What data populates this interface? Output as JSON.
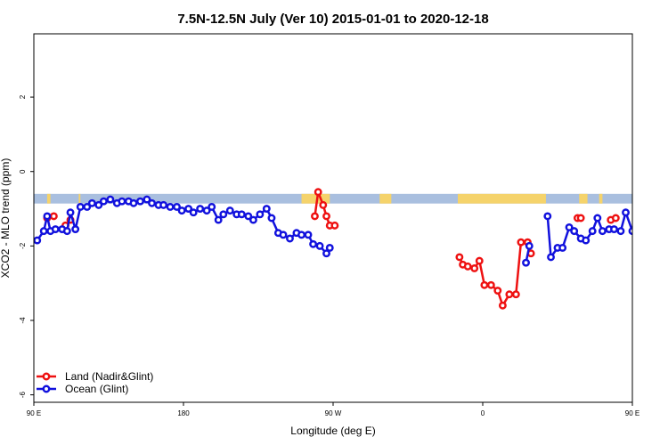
{
  "chart_data": {
    "type": "line",
    "title": "7.5N-12.5N July (Ver 10)   2015-01-01 to 2020-12-18",
    "xlabel": "Longitude (deg E)",
    "ylabel": "XCO2 - MLO trend (ppm)",
    "xlim": [
      90,
      450
    ],
    "ylim": [
      -6.2,
      3.7
    ],
    "x_ticks": [
      {
        "value": 90,
        "label": "90 E"
      },
      {
        "value": 180,
        "label": "180"
      },
      {
        "value": 270,
        "label": "90 W"
      },
      {
        "value": 360,
        "label": "0"
      },
      {
        "value": 450,
        "label": "90 E"
      },
      {
        "value": 540,
        "label": "180"
      }
    ],
    "y_ticks": [
      {
        "value": -6,
        "label": "-6"
      },
      {
        "value": -4,
        "label": "-4"
      },
      {
        "value": -2,
        "label": "-2"
      },
      {
        "value": 0,
        "label": "0"
      },
      {
        "value": 2,
        "label": "2"
      }
    ],
    "grid": false,
    "legend_position": "bottom-left",
    "map_strip": {
      "y_top": -0.6,
      "y_bottom": -0.86,
      "ocean_color": "#a9bfdf",
      "land_color": "#f5d36b",
      "land_segments": [
        [
          98,
          100
        ],
        [
          117,
          118
        ],
        [
          251,
          268
        ],
        [
          298,
          305
        ],
        [
          345,
          398
        ],
        [
          418,
          423
        ],
        [
          430,
          432
        ]
      ]
    },
    "series": [
      {
        "name": "Land (Nadir&Glint)",
        "color": "#ee1111",
        "segments": [
          [
            [
              98,
              -1.25
            ],
            [
              102,
              -1.2
            ]
          ],
          [
            [
              109,
              -1.45
            ],
            [
              112,
              -1.3
            ]
          ],
          [
            [
              259,
              -1.2
            ],
            [
              261,
              -0.55
            ],
            [
              264,
              -0.9
            ],
            [
              266,
              -1.2
            ],
            [
              268,
              -1.45
            ],
            [
              271,
              -1.45
            ]
          ],
          [
            [
              346,
              -2.3
            ],
            [
              348,
              -2.5
            ],
            [
              351,
              -2.55
            ],
            [
              355,
              -2.6
            ],
            [
              358,
              -2.4
            ],
            [
              361,
              -3.05
            ],
            [
              365,
              -3.05
            ],
            [
              369,
              -3.2
            ],
            [
              372,
              -3.6
            ],
            [
              376,
              -3.3
            ],
            [
              380,
              -3.3
            ],
            [
              383,
              -1.9
            ],
            [
              387,
              -1.9
            ],
            [
              389,
              -2.2
            ]
          ],
          [
            [
              417,
              -1.25
            ],
            [
              419,
              -1.25
            ]
          ],
          [
            [
              437,
              -1.3
            ],
            [
              440,
              -1.25
            ]
          ]
        ]
      },
      {
        "name": "Ocean (Glint)",
        "color": "#1111dd",
        "segments": [
          [
            [
              92,
              -1.85
            ],
            [
              96,
              -1.6
            ],
            [
              98,
              -1.2
            ],
            [
              100,
              -1.6
            ],
            [
              103,
              -1.55
            ],
            [
              107,
              -1.55
            ],
            [
              110,
              -1.6
            ],
            [
              112,
              -1.1
            ],
            [
              115,
              -1.55
            ],
            [
              118,
              -0.95
            ],
            [
              122,
              -0.95
            ],
            [
              125,
              -0.85
            ],
            [
              129,
              -0.9
            ],
            [
              132,
              -0.8
            ],
            [
              136,
              -0.75
            ],
            [
              140,
              -0.85
            ],
            [
              143,
              -0.8
            ],
            [
              147,
              -0.8
            ],
            [
              150,
              -0.85
            ],
            [
              154,
              -0.8
            ],
            [
              158,
              -0.75
            ],
            [
              161,
              -0.85
            ],
            [
              165,
              -0.9
            ],
            [
              168,
              -0.9
            ],
            [
              172,
              -0.95
            ],
            [
              176,
              -0.95
            ],
            [
              179,
              -1.05
            ],
            [
              183,
              -1.0
            ],
            [
              186,
              -1.1
            ],
            [
              190,
              -1.0
            ],
            [
              194,
              -1.05
            ],
            [
              197,
              -0.95
            ],
            [
              201,
              -1.3
            ],
            [
              204,
              -1.15
            ],
            [
              208,
              -1.05
            ],
            [
              212,
              -1.15
            ],
            [
              215,
              -1.15
            ],
            [
              219,
              -1.2
            ],
            [
              222,
              -1.3
            ],
            [
              226,
              -1.15
            ],
            [
              230,
              -1.0
            ],
            [
              233,
              -1.25
            ],
            [
              237,
              -1.65
            ],
            [
              240,
              -1.7
            ],
            [
              244,
              -1.8
            ],
            [
              248,
              -1.65
            ],
            [
              251,
              -1.7
            ],
            [
              255,
              -1.7
            ],
            [
              258,
              -1.95
            ],
            [
              262,
              -2.0
            ],
            [
              266,
              -2.2
            ],
            [
              268,
              -2.05
            ]
          ],
          [
            [
              386,
              -2.45
            ],
            [
              388,
              -2.0
            ]
          ],
          [
            [
              399,
              -1.2
            ],
            [
              401,
              -2.3
            ],
            [
              405,
              -2.05
            ],
            [
              408,
              -2.05
            ],
            [
              412,
              -1.5
            ],
            [
              415,
              -1.6
            ],
            [
              419,
              -1.8
            ],
            [
              422,
              -1.85
            ],
            [
              426,
              -1.6
            ],
            [
              429,
              -1.25
            ],
            [
              432,
              -1.6
            ],
            [
              436,
              -1.55
            ],
            [
              439,
              -1.55
            ],
            [
              443,
              -1.6
            ],
            [
              446,
              -1.1
            ],
            [
              450,
              -1.6
            ],
            [
              453,
              -0.95
            ],
            [
              457,
              -0.95
            ],
            [
              461,
              -0.85
            ],
            [
              464,
              -0.9
            ],
            [
              468,
              -0.8
            ],
            [
              471,
              -0.7
            ],
            [
              475,
              -0.85
            ],
            [
              478,
              -0.75
            ],
            [
              482,
              -0.85
            ]
          ]
        ]
      }
    ]
  }
}
